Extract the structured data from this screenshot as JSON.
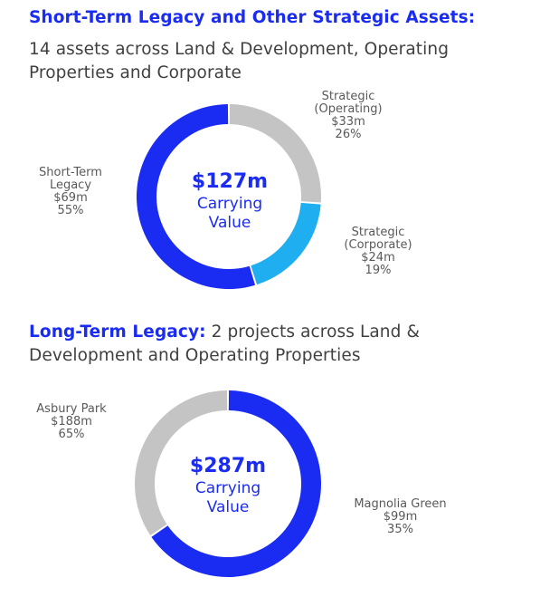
{
  "section1": {
    "title": "Short-Term Legacy and Other Strategic Assets:",
    "subtitle_line1": "14 assets across Land & Development, Operating",
    "subtitle_line2": "Properties and Corporate"
  },
  "section2": {
    "title": "Long-Term Legacy:",
    "subtitle_line1": " 2 projects across Land &",
    "subtitle_line2": "Development and Operating Properties"
  },
  "chart_data": [
    {
      "type": "pie",
      "center_value": "$127m",
      "center_label_line1": "Carrying",
      "center_label_line2": "Value",
      "slices": [
        {
          "name_lines": [
            "Strategic",
            "(Operating)"
          ],
          "value_label": "$33m",
          "pct_label": "26%",
          "value": 33,
          "color": "#c4c4c4"
        },
        {
          "name_lines": [
            "Strategic",
            "(Corporate)"
          ],
          "value_label": "$24m",
          "pct_label": "19%",
          "value": 24,
          "color": "#1faef0"
        },
        {
          "name_lines": [
            "Short-Term",
            "Legacy"
          ],
          "value_label": "$69m",
          "pct_label": "55%",
          "value": 69,
          "color": "#1a2cf2"
        }
      ]
    },
    {
      "type": "pie",
      "center_value": "$287m",
      "center_label_line1": "Carrying",
      "center_label_line2": "Value",
      "slices": [
        {
          "name_lines": [
            "Asbury Park"
          ],
          "value_label": "$188m",
          "pct_label": "65%",
          "value": 188,
          "color": "#1a2cf2"
        },
        {
          "name_lines": [
            "Magnolia Green"
          ],
          "value_label": "$99m",
          "pct_label": "35%",
          "value": 99,
          "color": "#c4c4c4"
        }
      ]
    }
  ]
}
